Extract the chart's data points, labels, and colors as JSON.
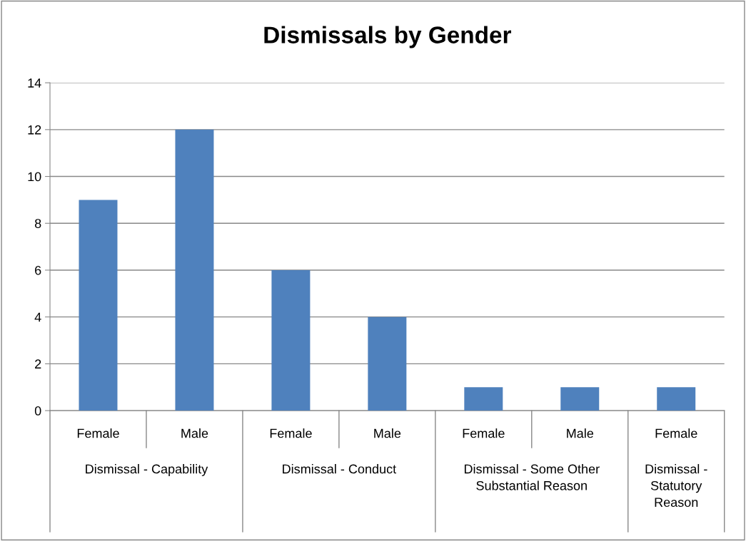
{
  "chart_data": {
    "type": "bar",
    "title": "Dismissals by Gender",
    "categories": [
      "Female",
      "Male",
      "Female",
      "Male",
      "Female",
      "Male",
      "Female"
    ],
    "values": [
      9,
      12,
      6,
      4,
      1,
      1,
      1
    ],
    "color": "#4f81bd",
    "ylim": [
      0,
      14
    ],
    "yticks": [
      0,
      2,
      4,
      6,
      8,
      10,
      12,
      14
    ],
    "grid": "y",
    "annotations": [
      "Dismissal - Capability",
      "Dismissal - Conduct",
      "Dismissal - Some Other Substantial Reason",
      "Dismissal - Statutory Reason"
    ]
  }
}
